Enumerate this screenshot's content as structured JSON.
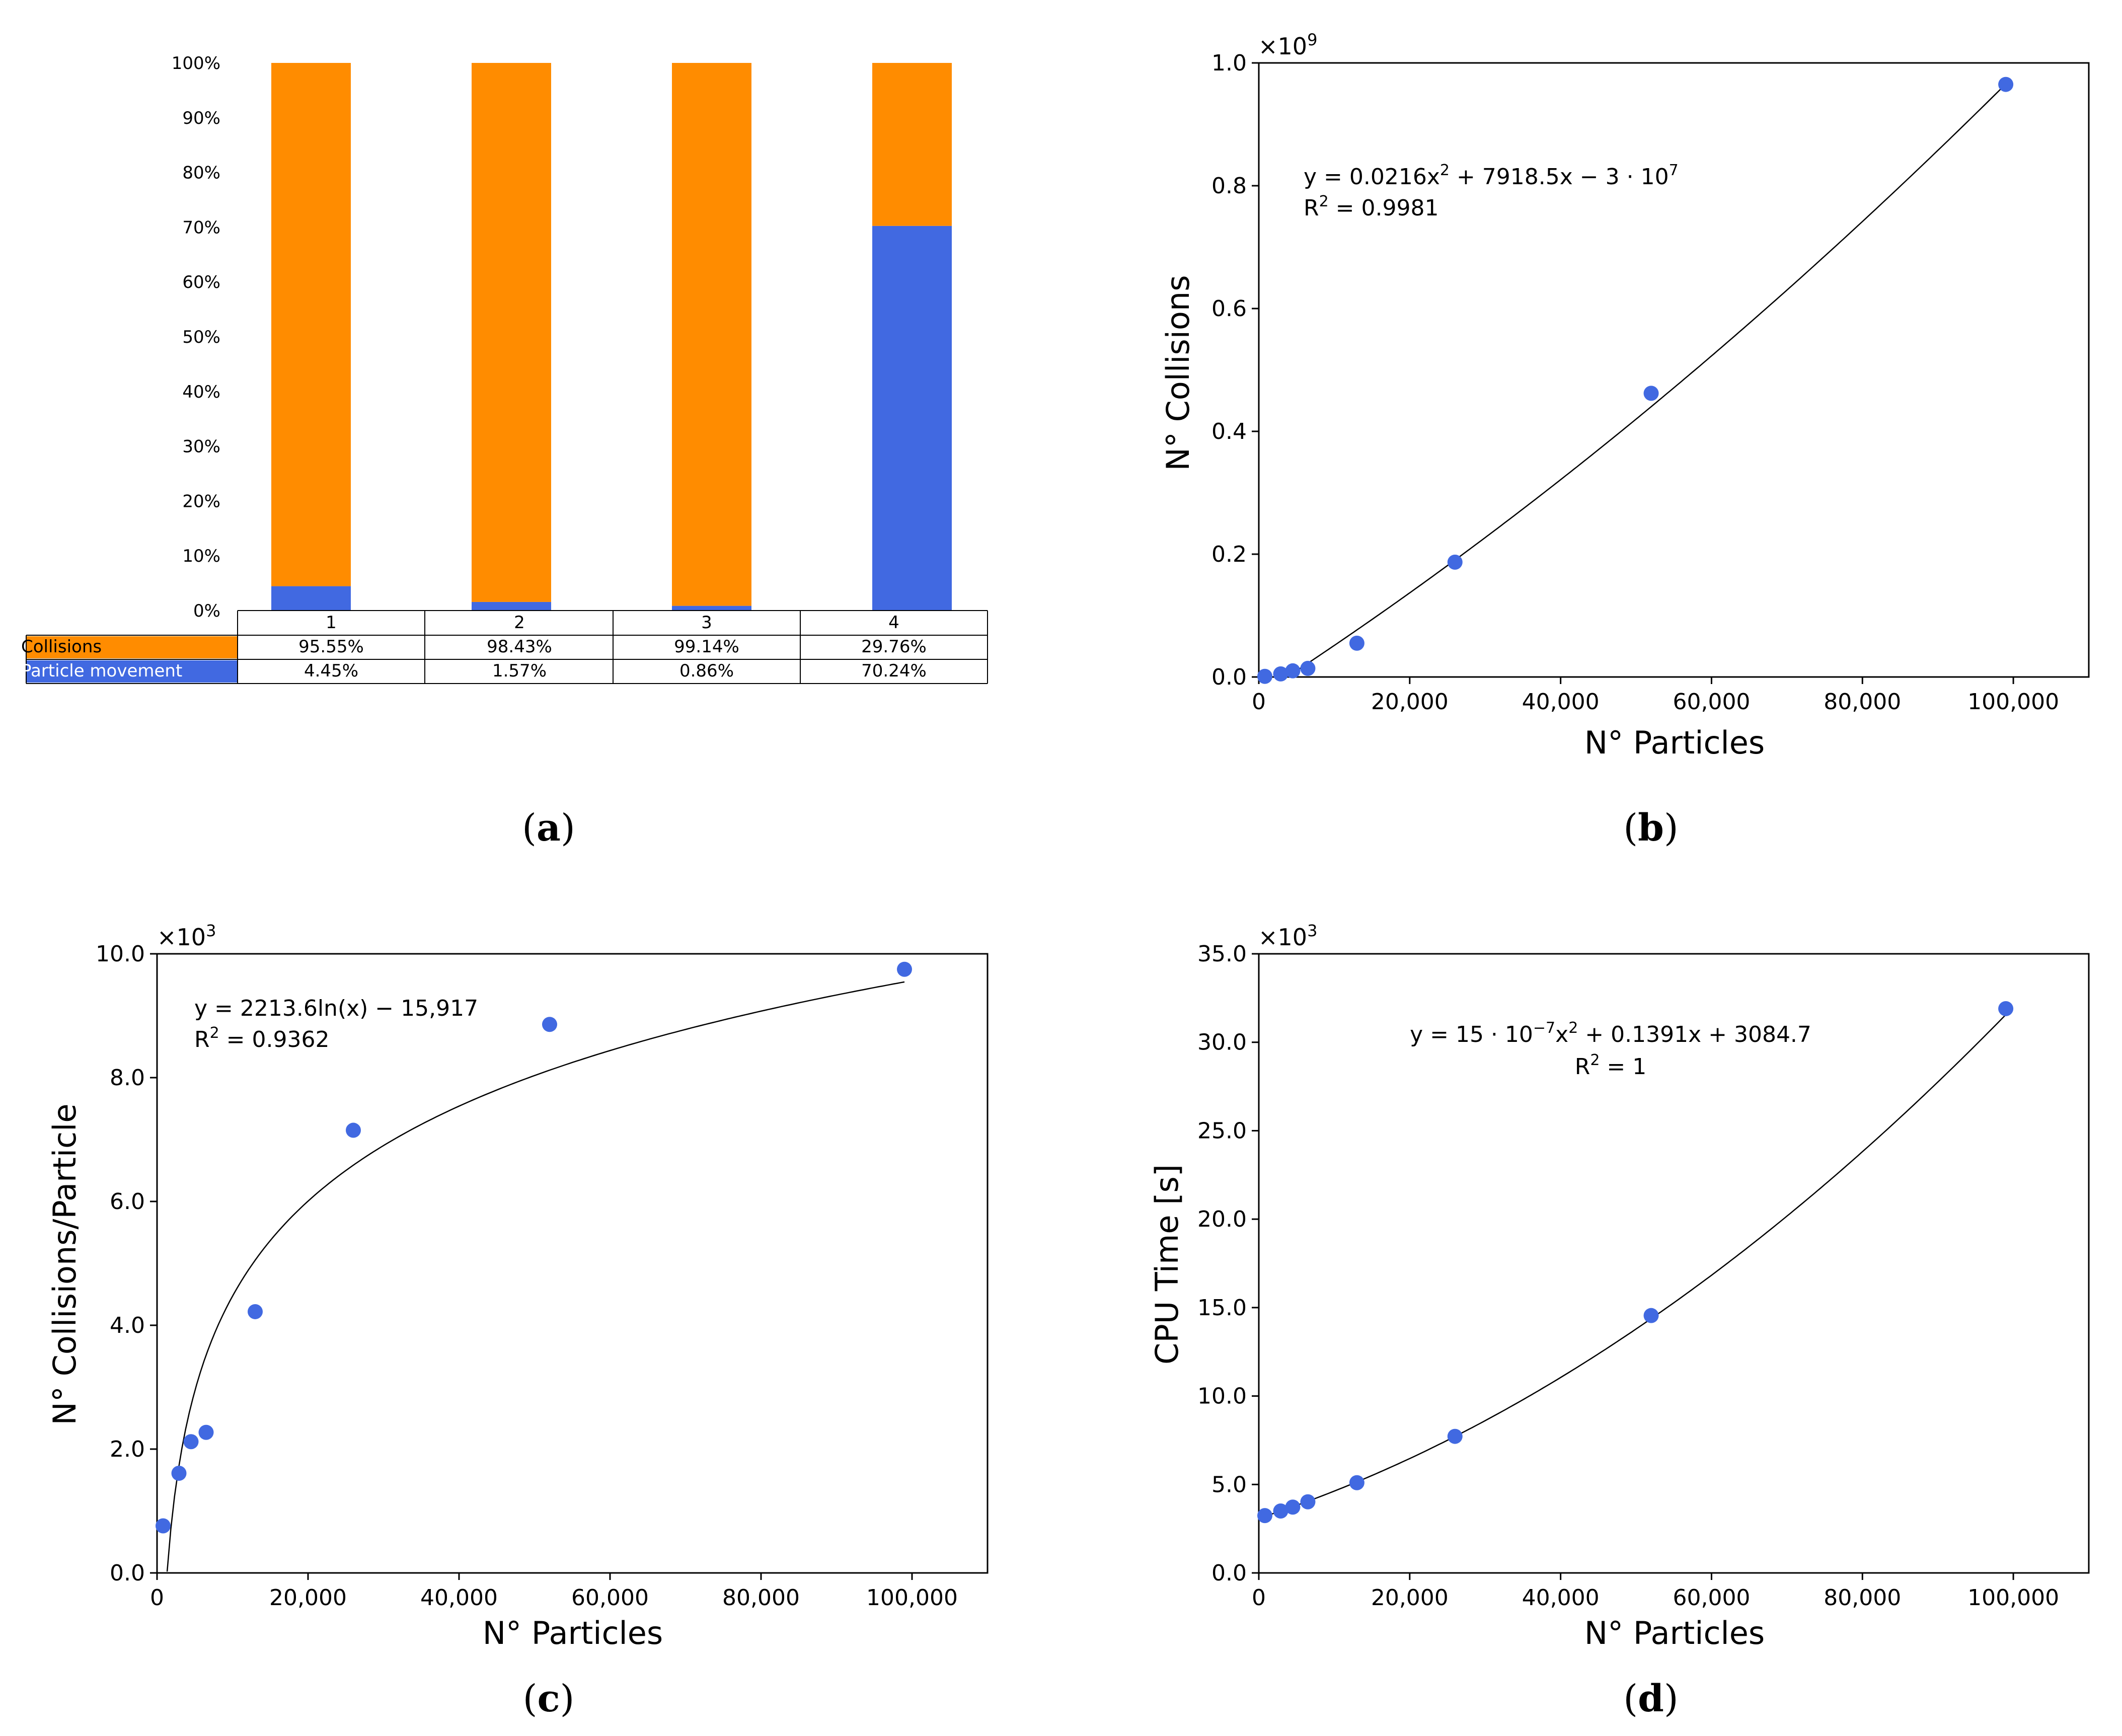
{
  "colors": {
    "collisions": "#FF8C00",
    "particle_movement": "#4169E1",
    "marker": "#4169E1",
    "fit_line": "#000000",
    "axis": "#000000"
  },
  "captions": {
    "a": {
      "open": "(",
      "letter": "a",
      "close": ")"
    },
    "b": {
      "open": "(",
      "letter": "b",
      "close": ")"
    },
    "c": {
      "open": "(",
      "letter": "c",
      "close": ")"
    },
    "d": {
      "open": "(",
      "letter": "d",
      "close": ")"
    }
  },
  "chart_data": [
    {
      "id": "a",
      "type": "bar",
      "stacked": true,
      "title": "",
      "categories": [
        "1",
        "2",
        "3",
        "4"
      ],
      "ylim": [
        0,
        100
      ],
      "yticks": [
        "0%",
        "10%",
        "20%",
        "30%",
        "40%",
        "50%",
        "60%",
        "70%",
        "80%",
        "90%",
        "100%"
      ],
      "series": [
        {
          "name": "Particle movement",
          "color_key": "particle_movement",
          "values": [
            4.45,
            1.57,
            0.86,
            70.24
          ]
        },
        {
          "name": "Collisions",
          "color_key": "collisions",
          "values": [
            95.55,
            98.43,
            99.14,
            29.76
          ]
        }
      ],
      "table": {
        "header": [
          "1",
          "2",
          "3",
          "4"
        ],
        "rows": [
          {
            "label": "Collisions",
            "color_key": "collisions",
            "cells": [
              "95.55%",
              "98.43%",
              "99.14%",
              "29.76%"
            ]
          },
          {
            "label": "Particle movement",
            "color_key": "particle_movement",
            "cells": [
              "4.45%",
              "1.57%",
              "0.86%",
              "70.24%"
            ]
          }
        ]
      }
    },
    {
      "id": "b",
      "type": "scatter",
      "xlabel": "N° Particles",
      "ylabel": "N° Collisions",
      "xlim": [
        0,
        110000
      ],
      "ylim": [
        0,
        1.0
      ],
      "xticks": [
        0,
        20000,
        40000,
        60000,
        80000,
        100000
      ],
      "xtick_labels": [
        "0",
        "20,000",
        "40,000",
        "60,000",
        "80,000",
        "100,000"
      ],
      "yticks": [
        0,
        0.2,
        0.4,
        0.6,
        0.8,
        1.0
      ],
      "ytick_labels": [
        "0.0",
        "0.2",
        "0.4",
        "0.6",
        "0.8",
        "1.0"
      ],
      "multiplier": {
        "base": "×10",
        "exp": "9"
      },
      "x": [
        800,
        2900,
        4500,
        6500,
        13000,
        26000,
        52000,
        99000
      ],
      "y": [
        0.001,
        0.005,
        0.01,
        0.014,
        0.055,
        0.187,
        0.462,
        0.965
      ],
      "fit": {
        "kind": "poly2",
        "a": 0.0216,
        "b": 7918.5,
        "c": -30000000,
        "scale": 1000000000.0,
        "from": 3500,
        "to": 99000
      },
      "annotation": {
        "line1": {
          "base": "y = 0.0216x",
          "sup1": "2",
          "mid": " + 7918.5x − 3 · 10",
          "sup2": "7"
        },
        "line2": {
          "base": "R",
          "sup": "2",
          "rest": " = 0.9981"
        }
      }
    },
    {
      "id": "c",
      "type": "scatter",
      "xlabel": "N° Particles",
      "ylabel": "N° Collisions/Particle",
      "xlim": [
        0,
        110000
      ],
      "ylim": [
        0,
        10.0
      ],
      "xticks": [
        0,
        20000,
        40000,
        60000,
        80000,
        100000
      ],
      "xtick_labels": [
        "0",
        "20,000",
        "40,000",
        "60,000",
        "80,000",
        "100,000"
      ],
      "yticks": [
        0,
        2,
        4,
        6,
        8,
        10
      ],
      "ytick_labels": [
        "0.0",
        "2.0",
        "4.0",
        "6.0",
        "8.0",
        "10.0"
      ],
      "multiplier": {
        "base": "×10",
        "exp": "3"
      },
      "x": [
        800,
        2900,
        4500,
        6500,
        13000,
        26000,
        52000,
        99000
      ],
      "y": [
        0.76,
        1.61,
        2.12,
        2.27,
        4.22,
        7.15,
        8.86,
        9.75
      ],
      "fit": {
        "kind": "log",
        "a": 2213.6,
        "b": -15917,
        "scale": 1000,
        "from": 1340,
        "to": 99000
      },
      "annotation": {
        "line1": {
          "base": "y = 2213.6ln(x) − 15,917"
        },
        "line2": {
          "base": "R",
          "sup": "2",
          "rest": " = 0.9362"
        }
      }
    },
    {
      "id": "d",
      "type": "scatter",
      "xlabel": "N° Particles",
      "ylabel": "CPU Time [s]",
      "xlim": [
        0,
        110000
      ],
      "ylim": [
        0,
        35.0
      ],
      "xticks": [
        0,
        20000,
        40000,
        60000,
        80000,
        100000
      ],
      "xtick_labels": [
        "0",
        "20,000",
        "40,000",
        "60,000",
        "80,000",
        "100,000"
      ],
      "yticks": [
        0,
        5,
        10,
        15,
        20,
        25,
        30,
        35
      ],
      "ytick_labels": [
        "0.0",
        "5.0",
        "10.0",
        "15.0",
        "20.0",
        "25.0",
        "30.0",
        "35.0"
      ],
      "multiplier": {
        "base": "×10",
        "exp": "3"
      },
      "x": [
        800,
        2900,
        4500,
        6500,
        13000,
        26000,
        52000,
        99000
      ],
      "y": [
        3.24,
        3.5,
        3.72,
        4.02,
        5.1,
        7.72,
        14.55,
        31.9
      ],
      "fit": {
        "kind": "poly2",
        "a": 1.5e-06,
        "b": 0.1391,
        "c": 3084.7,
        "scale": 1000,
        "from": 800,
        "to": 99000
      },
      "annotation": {
        "line1": {
          "base": "y = 15 · 10",
          "sup1": "−7",
          "mid": "x",
          "sup2": "2",
          "tail": " + 0.1391x + 3084.7"
        },
        "line2": {
          "base": "R",
          "sup": "2",
          "rest": " = 1"
        }
      }
    }
  ]
}
